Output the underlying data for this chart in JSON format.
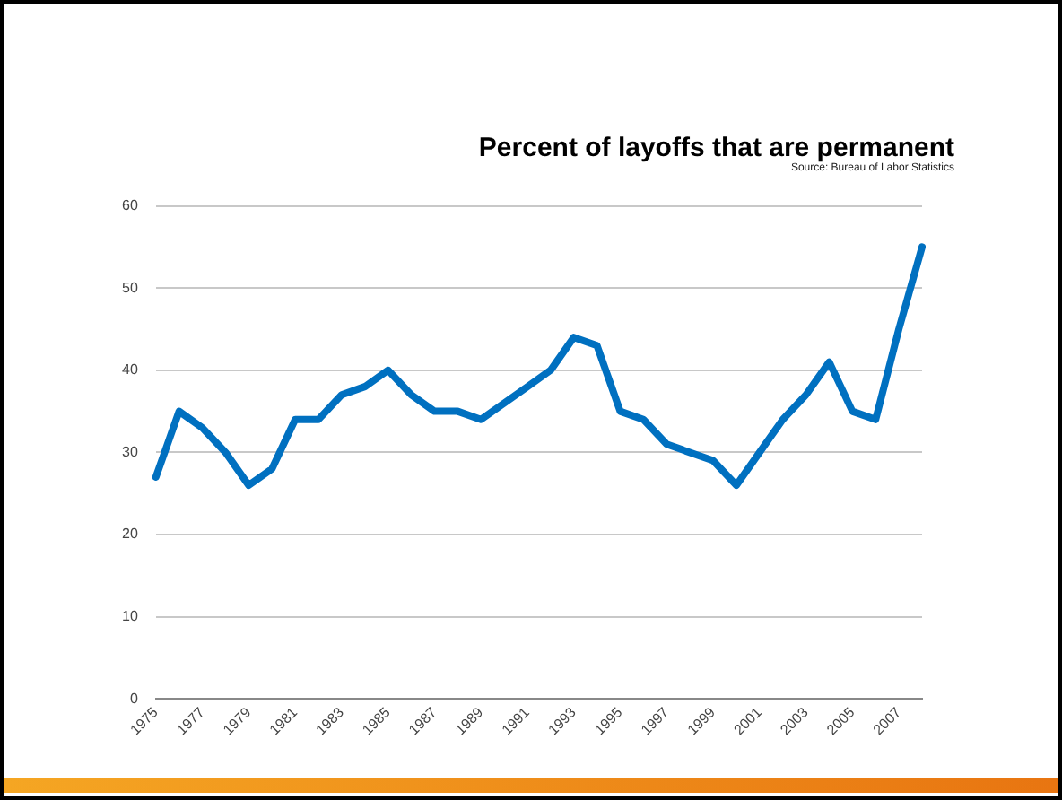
{
  "chart_data": {
    "type": "line",
    "title": "Percent of layoffs that are permanent",
    "annotations": [
      "Source: Bureau of Labor Statistics"
    ],
    "categories": [
      "1975",
      null,
      "1977",
      null,
      "1979",
      null,
      "1981",
      null,
      "1983",
      null,
      "1985",
      null,
      "1987",
      null,
      "1989",
      null,
      "1991",
      null,
      "1993",
      null,
      "1995",
      null,
      "1997",
      null,
      "1999",
      null,
      "2001",
      null,
      "2003",
      null,
      "2005",
      null,
      "2007",
      null
    ],
    "series": [
      {
        "color": "#0070c0",
        "values": [
          27,
          35,
          33,
          30,
          26,
          28,
          34,
          34,
          37,
          38,
          40,
          37,
          35,
          35,
          34,
          36,
          38,
          40,
          44,
          43,
          35,
          34,
          31,
          30,
          29,
          26,
          30,
          34,
          37,
          41,
          35,
          34,
          45,
          55
        ]
      }
    ],
    "ylim": [
      0,
      60
    ],
    "yticks": [
      0,
      10,
      20,
      30,
      40,
      50,
      60
    ],
    "grid": "y",
    "legend": false,
    "marker": "none",
    "line_style": "solid"
  }
}
